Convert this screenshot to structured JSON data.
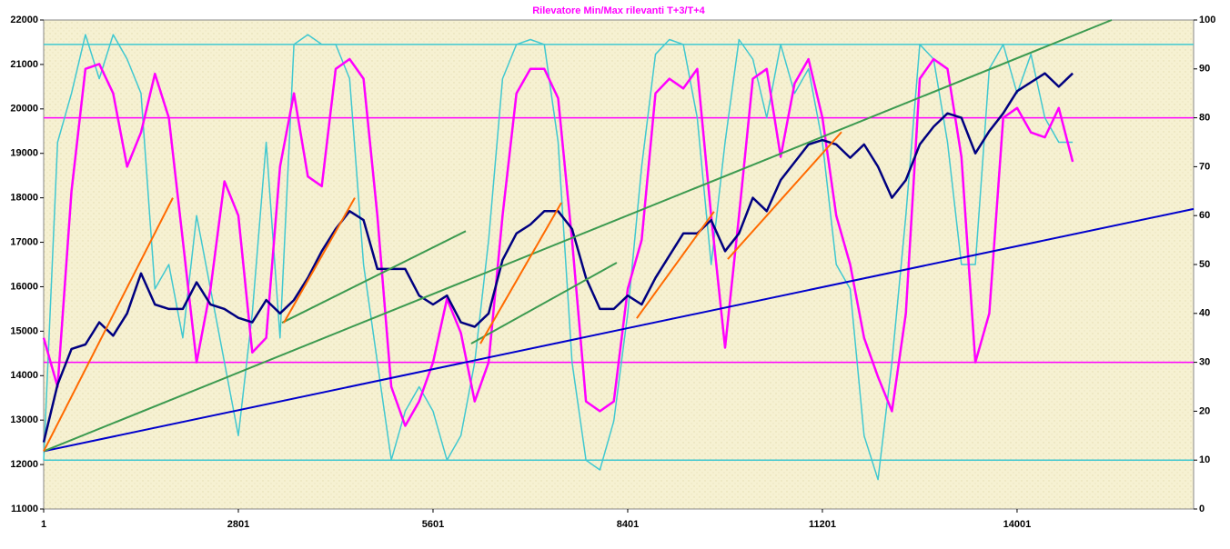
{
  "chart_data": {
    "type": "line",
    "title": "Rilevatore Min/Max rilevanti T+3/T+4",
    "title_color": "#ff00ff",
    "x": [
      1,
      201,
      401,
      601,
      801,
      1001,
      1201,
      1401,
      1601,
      1801,
      2001,
      2201,
      2401,
      2601,
      2801,
      3001,
      3201,
      3401,
      3601,
      3801,
      4001,
      4201,
      4401,
      4601,
      4801,
      5001,
      5201,
      5401,
      5601,
      5801,
      6001,
      6201,
      6401,
      6601,
      6801,
      7001,
      7201,
      7401,
      7601,
      7801,
      8001,
      8201,
      8401,
      8601,
      8801,
      9001,
      9201,
      9401,
      9601,
      9801,
      10001,
      10201,
      10401,
      10601,
      10801,
      11001,
      11201,
      11401,
      11601,
      11801,
      12001,
      12201,
      12401,
      12601,
      12801,
      13001,
      13201,
      13401,
      13601,
      13801,
      14001,
      14201,
      14401,
      14601,
      14801
    ],
    "xlim": [
      1,
      16540
    ],
    "xticks": [
      1,
      2801,
      5601,
      8401,
      11201,
      14001
    ],
    "ylim": [
      11000,
      22000
    ],
    "yticks": [
      11000,
      12000,
      13000,
      14000,
      15000,
      16000,
      17000,
      18000,
      19000,
      20000,
      21000,
      22000
    ],
    "y2lim": [
      0,
      100
    ],
    "y2ticks": [
      0,
      10,
      20,
      30,
      40,
      50,
      60,
      70,
      80,
      90,
      100
    ],
    "series": [
      {
        "color": "#40c8d0",
        "axis": "y2",
        "values": [
          10,
          75,
          85,
          97,
          88,
          97,
          92,
          85,
          45,
          50,
          35,
          60,
          45,
          30,
          15,
          40,
          75,
          35,
          95,
          97,
          95,
          95,
          88,
          50,
          30,
          10,
          20,
          25,
          20,
          10,
          15,
          30,
          55,
          88,
          95,
          96,
          95,
          75,
          30,
          10,
          8,
          18,
          40,
          70,
          93,
          96,
          95,
          80,
          50,
          75,
          96,
          92,
          80,
          95,
          85,
          90,
          75,
          50,
          45,
          15,
          6,
          30,
          60,
          95,
          92,
          75,
          50,
          50,
          90,
          95,
          85,
          93,
          80,
          75,
          75
        ]
      },
      {
        "color": "#ff00ff",
        "axis": "y2",
        "values": [
          35,
          25,
          65,
          90,
          91,
          85,
          70,
          77,
          89,
          80,
          55,
          30,
          45,
          67,
          60,
          32,
          35,
          70,
          85,
          68,
          66,
          90,
          92,
          88,
          60,
          25,
          17,
          22,
          30,
          43,
          36,
          22,
          30,
          60,
          85,
          90,
          90,
          84,
          55,
          22,
          20,
          22,
          45,
          55,
          85,
          88,
          86,
          90,
          60,
          33,
          60,
          88,
          90,
          72,
          87,
          92,
          80,
          60,
          50,
          35,
          27,
          20,
          40,
          88,
          92,
          90,
          72,
          30,
          40,
          80,
          82,
          77,
          76,
          82,
          71
        ]
      },
      {
        "color": "#000080",
        "values": [
          12500,
          13800,
          14600,
          14700,
          15200,
          14900,
          15400,
          16300,
          15600,
          15500,
          15500,
          16100,
          15600,
          15500,
          15300,
          15200,
          15700,
          15400,
          15700,
          16200,
          16800,
          17300,
          17700,
          17500,
          16400,
          16400,
          16400,
          15800,
          15600,
          15800,
          15200,
          15100,
          15400,
          16600,
          17200,
          17400,
          17700,
          17700,
          17300,
          16200,
          15500,
          15500,
          15800,
          15600,
          16200,
          16700,
          17200,
          17200,
          17500,
          16800,
          17200,
          18000,
          17700,
          18400,
          18800,
          19200,
          19300,
          19200,
          18900,
          19200,
          18700,
          18000,
          18400,
          19200,
          19600,
          19900,
          19800,
          19000,
          19500,
          19900,
          20400,
          20600,
          20800,
          20500,
          20800
        ]
      }
    ],
    "hlines": [
      {
        "color": "#40c8d0",
        "axis": "y2",
        "value": 95
      },
      {
        "color": "#ff00ff",
        "axis": "y2",
        "value": 80
      },
      {
        "color": "#ff00ff",
        "axis": "y2",
        "value": 30
      },
      {
        "color": "#40c8d0",
        "axis": "y2",
        "value": 10
      }
    ],
    "lines": [
      {
        "color": "#0000cc",
        "x": [
          1,
          16540
        ],
        "y": [
          12300,
          17750
        ]
      },
      {
        "color": "#3c9a50",
        "x": [
          1,
          15362
        ],
        "y": [
          12300,
          22000
        ]
      },
      {
        "color": "#3c9a50",
        "x": [
          3429,
          6072
        ],
        "y": [
          15190,
          17250
        ]
      },
      {
        "color": "#3c9a50",
        "x": [
          6150,
          8243
        ],
        "y": [
          14720,
          16540
        ]
      },
      {
        "color": "#ff6a00",
        "x": [
          1,
          1859
        ],
        "y": [
          12300,
          18000
        ]
      },
      {
        "color": "#ff6a00",
        "x": [
          3455,
          4476
        ],
        "y": [
          15190,
          18000
        ]
      },
      {
        "color": "#ff6a00",
        "x": [
          6282,
          7447
        ],
        "y": [
          14720,
          17890
        ]
      },
      {
        "color": "#ff6a00",
        "x": [
          8531,
          9643
        ],
        "y": [
          15290,
          17690
        ]
      },
      {
        "color": "#ff6a00",
        "x": [
          9840,
          11476
        ],
        "y": [
          16620,
          19480
        ]
      }
    ]
  }
}
